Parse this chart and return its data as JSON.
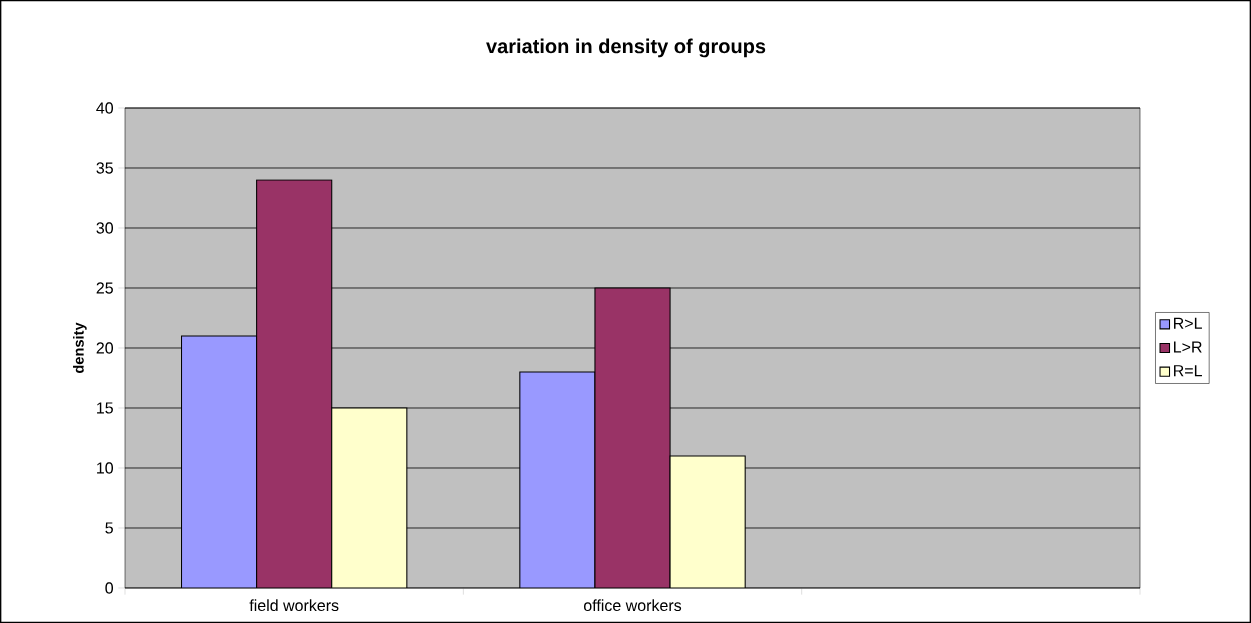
{
  "chart_data": {
    "type": "bar",
    "title": "variation in density of groups",
    "ylabel": "density",
    "categories": [
      "field workers",
      "office workers",
      null
    ],
    "series": [
      {
        "name": "R>L",
        "color": "#9999ff",
        "values": [
          21,
          18,
          null
        ]
      },
      {
        "name": "L>R",
        "color": "#993366",
        "values": [
          34,
          25,
          null
        ]
      },
      {
        "name": "R=L",
        "color": "#ffffcc",
        "values": [
          15,
          11,
          null
        ]
      }
    ],
    "ylim": [
      0,
      40
    ],
    "yticks": [
      0,
      5,
      10,
      15,
      20,
      25,
      30,
      35,
      40
    ],
    "grid": "y",
    "legend": "right"
  }
}
